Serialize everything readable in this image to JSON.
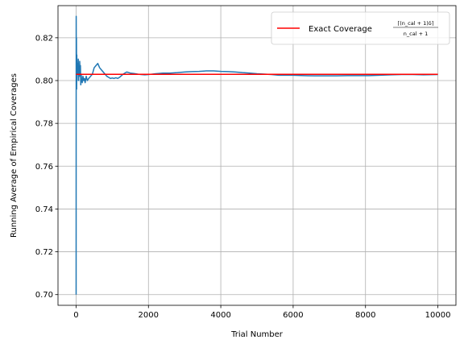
{
  "chart_data": {
    "type": "line",
    "title": "",
    "xlabel": "Trial Number",
    "ylabel": "Running Average of Empirical Coverages",
    "xlim": [
      -500,
      10500
    ],
    "ylim": [
      0.695,
      0.835
    ],
    "xticks": [
      0,
      2000,
      4000,
      6000,
      8000,
      10000
    ],
    "yticks": [
      0.7,
      0.72,
      0.74,
      0.76,
      0.78,
      0.8,
      0.82
    ],
    "xtick_labels": [
      "0",
      "2000",
      "4000",
      "6000",
      "8000",
      "10000"
    ],
    "ytick_labels": [
      "0.70",
      "0.72",
      "0.74",
      "0.76",
      "0.78",
      "0.80",
      "0.82"
    ],
    "grid": true,
    "legend_position": "top-right",
    "colors": {
      "running_average": "#1f77b4",
      "exact": "#ff0000",
      "grid": "#b0b0b0"
    },
    "series": [
      {
        "role": "running_average",
        "x": [
          1,
          3,
          6,
          10,
          15,
          20,
          25,
          30,
          40,
          50,
          60,
          70,
          80,
          90,
          100,
          110,
          120,
          130,
          140,
          150,
          170,
          190,
          210,
          230,
          250,
          280,
          310,
          350,
          400,
          450,
          500,
          550,
          600,
          650,
          700,
          750,
          800,
          850,
          900,
          950,
          1000,
          1050,
          1100,
          1150,
          1200,
          1300,
          1400,
          1500,
          1600,
          1700,
          1800,
          1900,
          2000,
          2200,
          2400,
          2600,
          2800,
          3000,
          3200,
          3400,
          3600,
          3800,
          4000,
          4200,
          4400,
          4600,
          4800,
          5000,
          5200,
          5400,
          5600,
          5800,
          6000,
          6300,
          6600,
          6900,
          7200,
          7500,
          7800,
          8100,
          8400,
          8700,
          9000,
          9300,
          9600,
          10000
        ],
        "values": [
          0.7,
          0.83,
          0.8,
          0.82,
          0.796,
          0.812,
          0.8,
          0.808,
          0.803,
          0.805,
          0.81,
          0.8,
          0.806,
          0.802,
          0.809,
          0.804,
          0.807,
          0.798,
          0.803,
          0.801,
          0.799,
          0.802,
          0.8,
          0.801,
          0.799,
          0.802,
          0.8,
          0.801,
          0.802,
          0.803,
          0.806,
          0.807,
          0.808,
          0.806,
          0.805,
          0.804,
          0.803,
          0.802,
          0.8015,
          0.801,
          0.8012,
          0.801,
          0.8013,
          0.801,
          0.8015,
          0.803,
          0.804,
          0.8035,
          0.8033,
          0.803,
          0.8028,
          0.8027,
          0.8028,
          0.8032,
          0.8035,
          0.8035,
          0.8037,
          0.804,
          0.8042,
          0.8043,
          0.8045,
          0.8045,
          0.8043,
          0.8042,
          0.804,
          0.8037,
          0.8035,
          0.8032,
          0.803,
          0.8028,
          0.8025,
          0.8025,
          0.8025,
          0.8023,
          0.8022,
          0.8022,
          0.8022,
          0.8023,
          0.8023,
          0.8023,
          0.8025,
          0.8027,
          0.8028,
          0.8028,
          0.8027,
          0.8028
        ]
      },
      {
        "role": "exact",
        "name": "Exact Coverage",
        "x": [
          0,
          10000
        ],
        "values": [
          0.8029,
          0.8029
        ]
      }
    ],
    "legend": {
      "label": "Exact Coverage",
      "formula_numerator": "⌈(n_cal + 1)δ⌉",
      "formula_denominator": "n_cal + 1"
    }
  }
}
